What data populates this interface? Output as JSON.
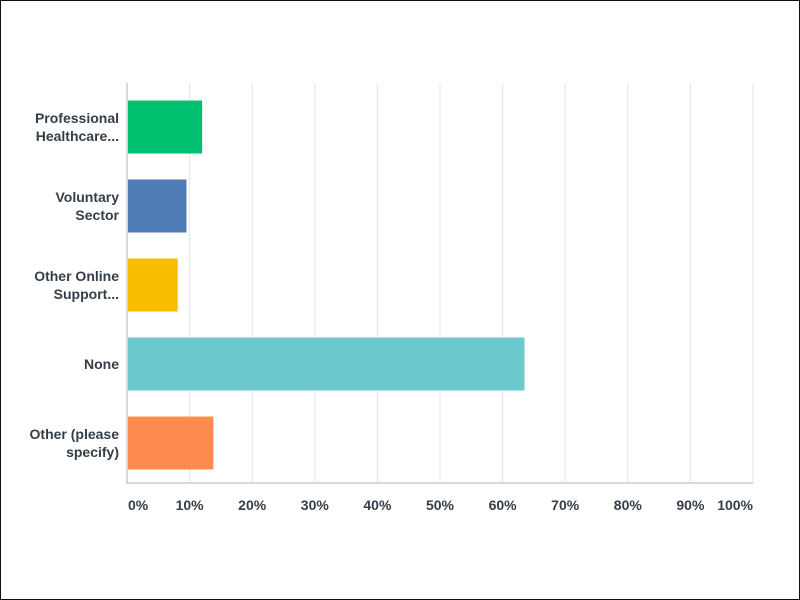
{
  "chart_data": {
    "type": "bar",
    "orientation": "horizontal",
    "categories": [
      [
        "Professional",
        "Healthcare..."
      ],
      [
        "Voluntary",
        "Sector"
      ],
      [
        "Other Online",
        "Support..."
      ],
      [
        "None"
      ],
      [
        "Other (please",
        "specify)"
      ]
    ],
    "values": [
      12,
      9.5,
      8.1,
      63.5,
      13.8
    ],
    "colors": [
      "#00bf6f",
      "#507cb6",
      "#f9be00",
      "#6bc8cd",
      "#ff8b4f"
    ],
    "xlim": [
      0,
      100
    ],
    "xticks": [
      "0%",
      "10%",
      "20%",
      "30%",
      "40%",
      "50%",
      "60%",
      "70%",
      "80%",
      "90%",
      "100%"
    ],
    "grid": true,
    "title": "",
    "xlabel": "",
    "ylabel": ""
  }
}
